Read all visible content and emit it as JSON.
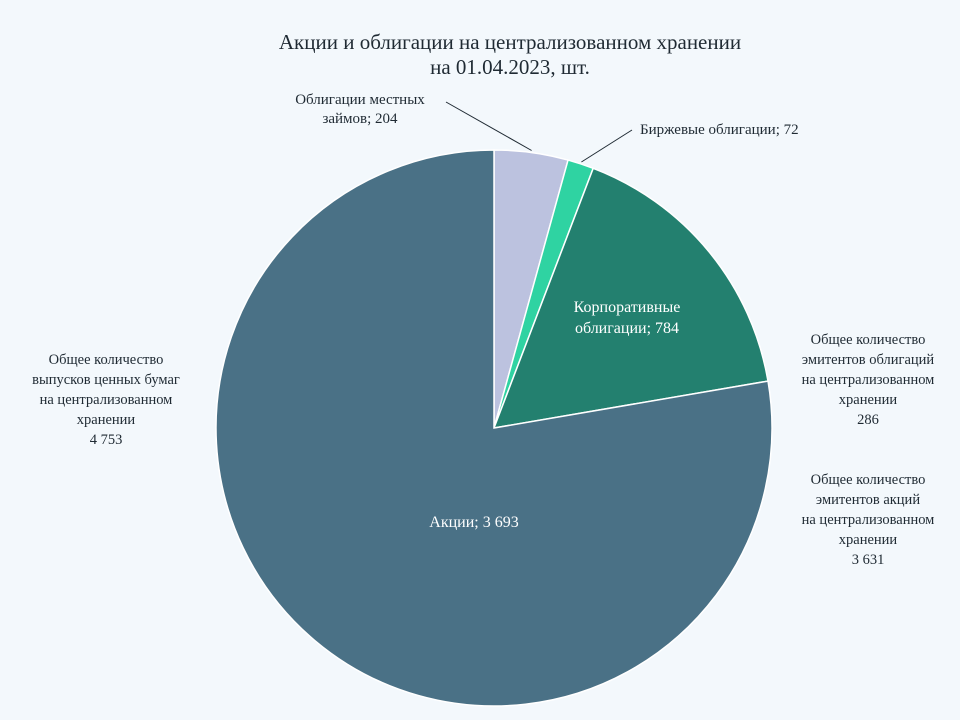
{
  "title_lines": [
    "Акции и облигации на централизованном хранении",
    "на 01.04.2023, шт."
  ],
  "chart_data": {
    "type": "pie",
    "title": "Акции и облигации на централизованном хранении на 01.04.2023, шт.",
    "slices": [
      {
        "name": "Облигации местных займов",
        "value": 204,
        "label_lines": [
          "Облигации местных",
          "займов; 204"
        ],
        "color": "#bcc2df",
        "label_color": "#1f2a33"
      },
      {
        "name": "Биржевые облигации",
        "value": 72,
        "label_lines": [
          "Биржевые облигации; 72"
        ],
        "color": "#2fd3a2",
        "label_color": "#1f2a33"
      },
      {
        "name": "Корпоративные облигации",
        "value": 784,
        "label_lines": [
          "Корпоративные",
          "облигации; 784"
        ],
        "color": "#23806f",
        "label_color": "#ffffff"
      },
      {
        "name": "Акции",
        "value": 3693,
        "label_lines": [
          "Акции; 3 693"
        ],
        "color": "#4a7186",
        "label_color": "#ffffff"
      }
    ]
  },
  "notes": {
    "left": [
      "Общее количество",
      "выпусков ценных  бумаг",
      "на централизованном",
      "хранении",
      "4 753"
    ],
    "bond_issuers": [
      "Общее количество",
      "эмитентов облигаций",
      "на централизованном",
      "хранении",
      "286"
    ],
    "share_issuers": [
      "Общее количество",
      "эмитентов акций",
      "на централизованном",
      "хранении",
      "3 631"
    ]
  },
  "colors": {
    "background": "#f3f8fc",
    "slice_border": "#ffffff",
    "leader_line": "#1f2a33"
  }
}
